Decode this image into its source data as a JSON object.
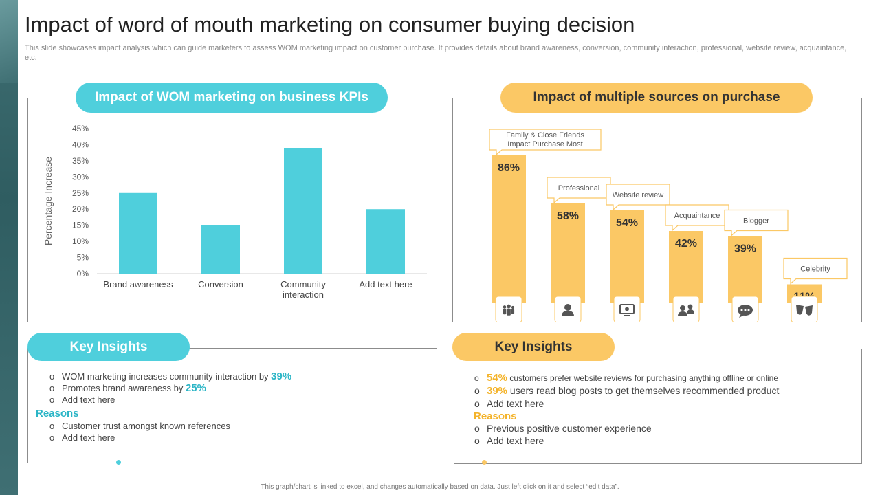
{
  "page": {
    "title": "Impact of word of mouth marketing on consumer buying decision",
    "subtitle": "This slide showcases impact analysis which can guide marketers to assess WOM marketing impact on customer purchase. It provides details about brand awareness, conversion, community interaction, professional, website review, acquaintance, etc.",
    "footnote": "This graph/chart is linked to excel, and changes automatically based on data. Just left click on it and select “edit data”."
  },
  "colors": {
    "teal": "#4fcfdc",
    "gold": "#fbc865",
    "teal_text": "#2bb5c6",
    "gold_text": "#f4b32a"
  },
  "left_section": {
    "header": "Impact of WOM marketing on business KPIs",
    "insights_header": "Key Insights",
    "insights": [
      {
        "text": "WOM marketing increases community interaction by ",
        "highlight": "39%"
      },
      {
        "text": "Promotes brand awareness by ",
        "highlight": "25%"
      },
      {
        "text": "Add text here",
        "highlight": ""
      }
    ],
    "reasons_label": "Reasons",
    "reasons": [
      "Customer trust amongst known references",
      "Add text here"
    ]
  },
  "right_section": {
    "header": "Impact of multiple sources on purchase",
    "insights_header": "Key Insights",
    "insights": [
      {
        "highlight": "54%",
        "text": " customers prefer website reviews for purchasing anything offline or online"
      },
      {
        "highlight": "39%",
        "text": " users read blog posts to get themselves recommended product"
      },
      {
        "highlight": "",
        "text": "Add text here"
      }
    ],
    "reasons_label": "Reasons",
    "reasons": [
      "Previous positive customer experience",
      "Add text here"
    ]
  },
  "chart_data": [
    {
      "type": "bar",
      "categories": [
        "Brand awareness",
        "Conversion",
        "Community interaction",
        "Add text here"
      ],
      "category_lines": [
        [
          "Brand awareness"
        ],
        [
          "Conversion"
        ],
        [
          "Community",
          "interaction"
        ],
        [
          "Add text here"
        ]
      ],
      "values": [
        25,
        15,
        39,
        20
      ],
      "ylabel": "Percentage Increase",
      "ylim": [
        0,
        45
      ],
      "yticks": [
        0,
        5,
        10,
        15,
        20,
        25,
        30,
        35,
        40,
        45
      ],
      "ytick_labels": [
        "0%",
        "5%",
        "10%",
        "15%",
        "20%",
        "25%",
        "30%",
        "35%",
        "40%",
        "45%"
      ],
      "color": "#4fcfdc"
    },
    {
      "type": "bar",
      "categories": [
        "Family & Close Friends Impact Purchase Most",
        "Professional",
        "Website review",
        "Acquaintance",
        "Blogger",
        "Celebrity"
      ],
      "category_lines": [
        [
          "Family & Close Friends",
          "Impact Purchase Most"
        ],
        [
          "Professional"
        ],
        [
          "Website review"
        ],
        [
          "Acquaintance"
        ],
        [
          "Blogger"
        ],
        [
          "Celebrity"
        ]
      ],
      "values": [
        86,
        58,
        54,
        42,
        39,
        11
      ],
      "value_labels": [
        "86%",
        "58%",
        "54%",
        "42%",
        "39%",
        "11%"
      ],
      "icons": [
        "family-icon",
        "person-icon",
        "monitor-icon",
        "group-icon",
        "chat-icon",
        "theater-masks-icon"
      ],
      "color": "#fbc865"
    }
  ]
}
